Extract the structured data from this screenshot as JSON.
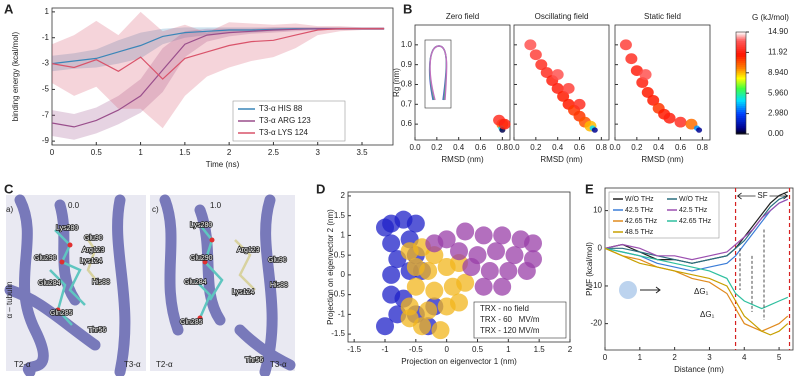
{
  "chart_data": [
    {
      "type": "line",
      "panel": "A",
      "xlabel": "Time (ns)",
      "ylabel": "binding energy (kcal/mol)",
      "xlim": [
        0,
        3.85
      ],
      "ylim": [
        -9.3,
        1.3
      ],
      "xticks": [
        0,
        0.5,
        1,
        1.5,
        2,
        2.5,
        3,
        3.5
      ],
      "yticks": [
        1,
        -1,
        -3,
        -5,
        -7,
        -9
      ],
      "legend": "lower right",
      "x": [
        0,
        0.25,
        0.5,
        0.75,
        1,
        1.25,
        1.5,
        1.75,
        2,
        2.25,
        2.5,
        2.75,
        3,
        3.25,
        3.5,
        3.75
      ],
      "series": [
        {
          "name": "T3-α HIS  88",
          "color": "#3a86b8",
          "values": [
            -3,
            -2.8,
            -2.6,
            -2.1,
            -1.6,
            -0.9,
            -0.6,
            -0.5,
            -0.4,
            -0.4,
            -0.35,
            -0.3,
            -0.3,
            -0.3,
            -0.3,
            -0.3
          ],
          "lower": [
            -3.6,
            -3.4,
            -3.3,
            -3,
            -2.6,
            -1.5,
            -1,
            -0.8,
            -0.6,
            -0.6,
            -0.5,
            -0.4,
            -0.4,
            -0.4,
            -0.4,
            -0.4
          ],
          "upper": [
            -2.4,
            -2.2,
            -1.9,
            -1.2,
            -0.6,
            -0.3,
            -0.2,
            -0.2,
            -0.2,
            -0.2,
            -0.2,
            -0.2,
            -0.2,
            -0.2,
            -0.2,
            -0.2
          ]
        },
        {
          "name": "T3-α ARG 123",
          "color": "#9a4f8c",
          "values": [
            -7.6,
            -7.9,
            -7.4,
            -6.6,
            -5.5,
            -3.5,
            -1.5,
            -0.8,
            -0.6,
            -0.5,
            -0.4,
            -0.35,
            -0.3,
            -0.3,
            -0.3,
            -0.3
          ],
          "lower": [
            -8.6,
            -8.9,
            -8.4,
            -7.7,
            -6.8,
            -5.2,
            -2.5,
            -1.3,
            -0.9,
            -0.7,
            -0.6,
            -0.5,
            -0.4,
            -0.4,
            -0.4,
            -0.4
          ],
          "upper": [
            -6.6,
            -6.9,
            -6.4,
            -5.5,
            -4.2,
            -1.8,
            -0.5,
            -0.3,
            -0.3,
            -0.3,
            -0.2,
            -0.2,
            -0.2,
            -0.2,
            -0.2,
            -0.2
          ]
        },
        {
          "name": "T3-α LYS 124",
          "color": "#d9536a",
          "values": [
            -3,
            -3.3,
            -2.7,
            -3.6,
            -2.5,
            -4.2,
            -2.6,
            -2.1,
            -1.6,
            -1.3,
            -1.2,
            -0.8,
            -0.4,
            -0.3,
            -0.3,
            -0.3
          ],
          "lower": [
            -4.5,
            -5.5,
            -4.8,
            -6.5,
            -6.5,
            -8,
            -5.5,
            -4,
            -3.3,
            -2.8,
            -2.5,
            -1.8,
            -0.8,
            -0.5,
            -0.4,
            -0.4
          ],
          "upper": [
            -1.5,
            -0.8,
            0.3,
            -0.8,
            1,
            -0.5,
            0,
            -0.6,
            0.2,
            0.1,
            0,
            0.1,
            -0.1,
            -0.1,
            -0.2,
            -0.2
          ]
        }
      ]
    },
    {
      "type": "heatmap",
      "panel": "B",
      "xlabel": "RMSD (nm)",
      "ylabel": "Rg (nm)",
      "xlim": [
        0,
        0.87
      ],
      "ylim": [
        0.52,
        1.1
      ],
      "xticks": [
        {
          "value": 0,
          "label": "0.0"
        },
        0.2,
        0.4,
        0.6,
        0.8
      ],
      "yticks": [
        0.6,
        0.7,
        0.8,
        0.9,
        {
          "value": 1,
          "label": "1.0"
        }
      ],
      "colorbar": {
        "label": "G (kJ/mol)",
        "lim": [
          0,
          14.9
        ],
        "ticks": [
          {
            "value": 14.9,
            "label": "14.90"
          },
          11.92,
          {
            "value": 8.94,
            "label": "8.940"
          },
          {
            "value": 5.96,
            "label": "5.960"
          },
          {
            "value": 2.98,
            "label": "2.980"
          },
          {
            "value": 0,
            "label": "0.00"
          }
        ]
      },
      "subplots": [
        {
          "title": "Zero field",
          "x": [
            0.8,
            0.79,
            0.8,
            0.77,
            0.82
          ],
          "y": [
            0.6,
            0.58,
            0.57,
            0.62,
            0.6
          ],
          "values": [
            10,
            5,
            0.5,
            12.5,
            12
          ]
        },
        {
          "title": "Oscillating field",
          "x": [
            0.15,
            0.2,
            0.25,
            0.3,
            0.35,
            0.4,
            0.45,
            0.5,
            0.55,
            0.6,
            0.65,
            0.7,
            0.72,
            0.74,
            0.5,
            0.4,
            0.6
          ],
          "y": [
            1.0,
            0.95,
            0.9,
            0.86,
            0.82,
            0.78,
            0.74,
            0.7,
            0.67,
            0.64,
            0.61,
            0.59,
            0.58,
            0.57,
            0.78,
            0.85,
            0.7
          ],
          "values": [
            13.5,
            13,
            12.5,
            12.5,
            12,
            12,
            11.5,
            11.5,
            11,
            11,
            10.5,
            9,
            5,
            1,
            13,
            13.5,
            12.5
          ]
        },
        {
          "title": "Static field",
          "x": [
            0.1,
            0.15,
            0.2,
            0.25,
            0.3,
            0.35,
            0.4,
            0.45,
            0.5,
            0.6,
            0.7,
            0.75,
            0.77,
            0.28
          ],
          "y": [
            1.0,
            0.93,
            0.87,
            0.81,
            0.76,
            0.72,
            0.68,
            0.65,
            0.63,
            0.61,
            0.6,
            0.58,
            0.57,
            0.85
          ],
          "values": [
            13,
            12.5,
            12,
            12,
            11.5,
            11.5,
            11,
            11.5,
            12,
            12.5,
            10,
            4,
            1,
            13.5
          ]
        }
      ]
    },
    {
      "type": "scatter",
      "panel": "D",
      "xlabel": "Projection on eigenvector 1 (nm)",
      "ylabel": "Projection on eigenvector 2 (nm)",
      "xlim": [
        -1.6,
        2
      ],
      "ylim": [
        -1.7,
        2.1
      ],
      "xticks": [
        -1.5,
        -1,
        -0.5,
        0,
        0.5,
        1,
        1.5,
        2
      ],
      "yticks": [
        -1.5,
        -1,
        -0.5,
        0,
        0.5,
        1,
        1.5,
        2
      ],
      "legend": "lower right",
      "series": [
        {
          "name": "TRX - no field",
          "color": "#1f22c8",
          "x": [
            -1,
            -0.9,
            -0.7,
            -0.5,
            -0.9,
            -0.6,
            -0.8,
            -0.5,
            -0.9,
            -0.6,
            -0.9,
            -0.7,
            -0.8,
            -0.5,
            -0.3,
            -1,
            -0.4,
            -0.2
          ],
          "values": [
            1.2,
            1.3,
            1.4,
            1.3,
            0.8,
            0.9,
            0.4,
            0.5,
            0,
            0.1,
            -0.5,
            -0.6,
            -1,
            -1,
            -1.3,
            -1.3,
            0.1,
            -0.8
          ]
        },
        {
          "name": "TRX - 60   MV/m",
          "color": "#f2b51c",
          "x": [
            -0.6,
            -0.4,
            -0.2,
            -0.5,
            -0.3,
            0,
            0.2,
            -0.5,
            -0.2,
            0.1,
            0.3,
            -0.6,
            -0.3,
            0,
            0.2,
            -0.4,
            -0.1,
            -0.6
          ],
          "values": [
            0.6,
            0.7,
            0.5,
            0.2,
            0.1,
            0.2,
            0.3,
            -0.3,
            -0.4,
            -0.3,
            -0.2,
            -0.8,
            -0.9,
            -0.8,
            -0.7,
            -1.3,
            -1.4,
            -1.1
          ]
        },
        {
          "name": "TRX - 120 MV/m",
          "color": "#9a3fa8",
          "x": [
            0,
            0.3,
            0.6,
            0.9,
            1.2,
            1.4,
            0.2,
            0.5,
            0.8,
            1.1,
            1.4,
            0.4,
            0.7,
            1.0,
            1.3,
            0.6,
            0.9,
            -0.2
          ],
          "values": [
            0.9,
            1.1,
            1.0,
            1.0,
            0.9,
            0.8,
            0.6,
            0.5,
            0.6,
            0.5,
            0.4,
            0.2,
            0.1,
            0.1,
            0.1,
            -0.3,
            -0.3,
            0.8
          ]
        }
      ]
    },
    {
      "type": "line",
      "panel": "E",
      "xlabel": "Distance (nm)",
      "ylabel": "PMF (kcal/mol)",
      "xlim": [
        0,
        5.4
      ],
      "ylim": [
        -27,
        16
      ],
      "xticks": [
        0,
        1,
        2,
        3,
        4,
        5
      ],
      "yticks": [
        10,
        0,
        -10,
        -20
      ],
      "legend": "upper left",
      "vlines": [
        3.75,
        5.3
      ],
      "region_label": "SF",
      "annotations": [
        "ΔG₁",
        "ΔG₁"
      ],
      "x": [
        0,
        0.5,
        1,
        1.5,
        2,
        2.5,
        3,
        3.5,
        3.75,
        4,
        4.25,
        4.5,
        4.75,
        5,
        5.25
      ],
      "series": [
        {
          "name": "W/O THz",
          "color": "#222222",
          "values": [
            0,
            1,
            -1,
            -3,
            -3,
            -4,
            -3,
            -2,
            0,
            3,
            6,
            9,
            12,
            14,
            15
          ]
        },
        {
          "name": "W/O THz",
          "color": "#2a6f7f",
          "values": [
            0,
            0,
            -1,
            -2,
            -3,
            -4,
            -3,
            -2,
            0,
            2,
            5,
            8,
            11,
            13,
            14
          ]
        },
        {
          "name": "42.5 THz",
          "color": "#3b7dd8",
          "values": [
            0,
            -1,
            -2,
            -4,
            -5,
            -6,
            -5,
            -4,
            -2,
            1,
            4,
            7,
            10,
            12,
            13
          ]
        },
        {
          "name": "42.5 THz",
          "color": "#9b4fb0",
          "values": [
            0,
            1,
            0,
            -2,
            -2,
            -3,
            -2,
            -1,
            1,
            3,
            5,
            8,
            10,
            12,
            13
          ]
        },
        {
          "name": "42.65 THz",
          "color": "#e08a1e",
          "values": [
            0,
            -2,
            -3,
            -5,
            -6,
            -8,
            -9,
            -12,
            -16,
            -20,
            -21,
            -22,
            -21,
            -20,
            -18
          ]
        },
        {
          "name": "42.65 THz",
          "color": "#2fbf9f",
          "values": [
            0,
            -1,
            -2,
            -3,
            -4,
            -5,
            -6,
            -8,
            -12,
            -14,
            -15,
            -16,
            -15,
            -14,
            -13
          ]
        },
        {
          "name": "48.5 THz",
          "color": "#c8a000",
          "values": [
            0,
            -2,
            -4,
            -5,
            -6,
            -7,
            -8,
            -10,
            -14,
            -18,
            -20,
            -22,
            -23,
            -22,
            -20
          ]
        }
      ]
    }
  ],
  "panel_c": {
    "panel": "C",
    "tubulin": "α – tubulin",
    "views": [
      {
        "tag": "a)",
        "time": "0.0",
        "left": "T2-α",
        "right": "T3-α",
        "labels": [
          "Lys280",
          "Glu90",
          "Arg123",
          "Lys124",
          "Glu290",
          "His88",
          "Glu284",
          "Gln285",
          "Thr56"
        ]
      },
      {
        "tag": "c)",
        "time": "1.0",
        "left": "T2-α",
        "right": "T3-α",
        "labels": [
          "Lys280",
          "Arg123",
          "Glu290",
          "Glu90",
          "Glu284",
          "Lys124",
          "His88",
          "Gln285",
          "Thr56"
        ]
      }
    ]
  }
}
